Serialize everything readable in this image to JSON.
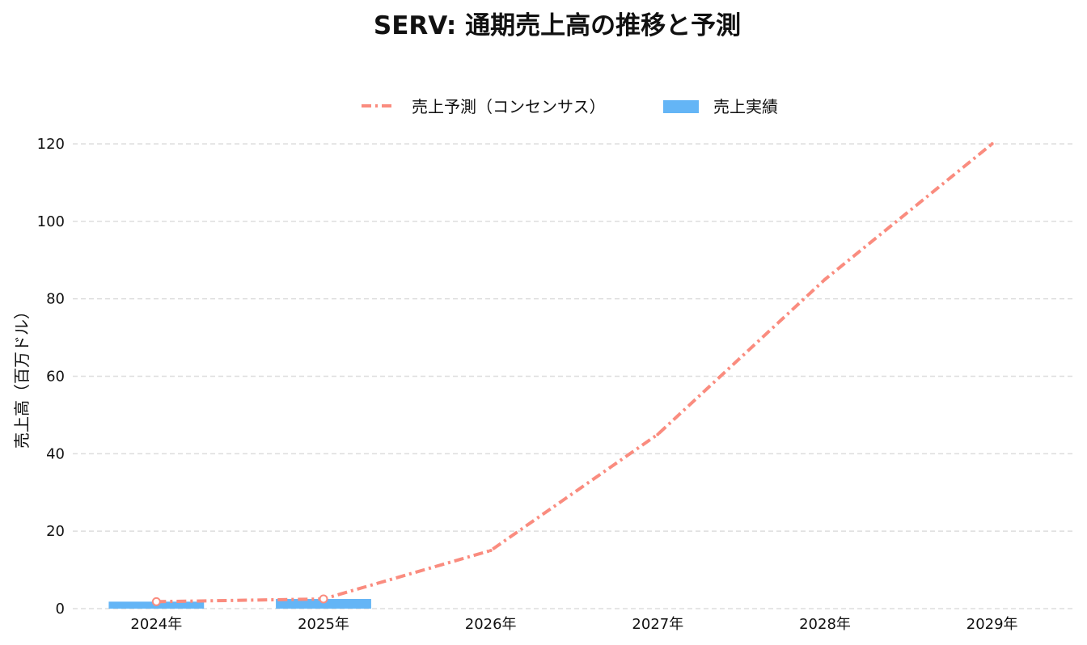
{
  "chart_data": {
    "type": "bar",
    "title": "SERV: 通期売上高の推移と予測",
    "xlabel": "",
    "ylabel": "売上高（百万ドル）",
    "categories": [
      "2024年",
      "2025年",
      "2026年",
      "2027年",
      "2028年",
      "2029年"
    ],
    "ylim": [
      0,
      120
    ],
    "yticks": [
      0,
      20,
      40,
      60,
      80,
      100,
      120
    ],
    "grid": true,
    "legend_position": "top-center",
    "series": [
      {
        "name": "売上予測（コンセンサス）",
        "kind": "line",
        "style": "dash-dot",
        "color": "#fa8c7f",
        "values": [
          1.8,
          2.5,
          15,
          45,
          85,
          120
        ]
      },
      {
        "name": "売上実績",
        "kind": "bar",
        "color": "#64b5f6",
        "values": [
          1.8,
          2.5,
          null,
          null,
          null,
          null
        ]
      }
    ]
  }
}
